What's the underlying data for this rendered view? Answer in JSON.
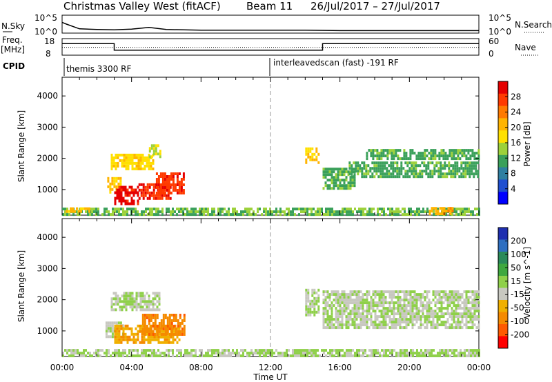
{
  "header": {
    "site": "Christmas Valley West (fitACF)",
    "beam": "Beam 11",
    "date_range": "26/Jul/2017 – 27/Jul/2017"
  },
  "nsky_panel": {
    "label": "N.Sky",
    "left_ticks": [
      "10^5",
      "10^0"
    ],
    "right_ticks": [
      "10^5",
      "10^0"
    ],
    "right_label": "N.Search"
  },
  "freq_panel": {
    "label_line1": "Freq.",
    "label_line2": "[MHz]",
    "left_ticks": [
      "18",
      "8"
    ],
    "right_ticks": [
      "60",
      "0"
    ],
    "right_label": "Nave"
  },
  "cpid": {
    "label": "CPID",
    "modes": [
      {
        "name": "themis 3300 RF",
        "start_hour": 0,
        "end_hour": 12
      },
      {
        "name": "interleavedscan (fast) -191 RF",
        "start_hour": 12,
        "end_hour": 24
      }
    ]
  },
  "time_axis": {
    "label": "Time UT",
    "ticks": [
      "00:00",
      "04:00",
      "08:00",
      "12:00",
      "16:00",
      "20:00",
      "00:00"
    ]
  },
  "colorbars": {
    "power": {
      "label": "Power [dB]",
      "ticks": [
        "28",
        "24",
        "20",
        "16",
        "12",
        "8",
        "4"
      ],
      "colors": [
        "#e50000",
        "#ff3a00",
        "#ff7a00",
        "#ffb400",
        "#ffe000",
        "#9cd13a",
        "#3aa05a",
        "#2f7fa0",
        "#1f4fd0",
        "#0000ff"
      ]
    },
    "velocity": {
      "label": "Velocity [m s^-1]",
      "ticks": [
        "200",
        "100",
        "50",
        "15",
        "-15",
        "-50",
        "-100",
        "-200"
      ],
      "colors": [
        "#1f2fb0",
        "#2f6fc0",
        "#2a8a5a",
        "#3fa83f",
        "#8fd04a",
        "#c8c8c0",
        "#f0b000",
        "#f58a00",
        "#ff5a00",
        "#ff0000"
      ]
    }
  },
  "chart_data": [
    {
      "type": "line",
      "title": "N.Sky / N.Search",
      "x": [
        0,
        0.25,
        1,
        2,
        3,
        4,
        5,
        6,
        8,
        10,
        12,
        14,
        16,
        18,
        20,
        22,
        24
      ],
      "series": [
        {
          "name": "N.Sky",
          "values": [
            3.0,
            2.5,
            1.2,
            1.0,
            0.9,
            1.1,
            1.6,
            1.0,
            0.8,
            0.8,
            0.8,
            0.8,
            0.7,
            0.7,
            0.7,
            0.7,
            0.7
          ]
        }
      ],
      "ylim": [
        0,
        5
      ]
    },
    {
      "type": "line",
      "title": "Freq. / Nave",
      "x": [
        0,
        3,
        3,
        15,
        15,
        24
      ],
      "series": [
        {
          "name": "Freq.",
          "values": [
            15,
            15,
            11,
            11,
            15,
            15
          ]
        },
        {
          "name": "Nave",
          "values": [
            28,
            28,
            28,
            28,
            28,
            28
          ]
        }
      ],
      "ylim": [
        8,
        18
      ]
    },
    {
      "type": "heatmap",
      "title": "Power [dB]",
      "xlabel": "Time UT",
      "ylabel": "Slant Range [km]",
      "xlim": [
        0,
        24
      ],
      "ylim": [
        180,
        4600
      ],
      "yticks": [
        1000,
        2000,
        3000,
        4000
      ],
      "zlim": [
        0,
        30
      ],
      "regions": [
        {
          "t": [
            0.0,
            24.0
          ],
          "r": [
            190,
            420
          ],
          "value": 12
        },
        {
          "t": [
            0.2,
            1.6
          ],
          "r": [
            330,
            430
          ],
          "value": 19
        },
        {
          "t": [
            2.6,
            3.4
          ],
          "r": [
            900,
            1400
          ],
          "value": 18
        },
        {
          "t": [
            3.0,
            4.4
          ],
          "r": [
            560,
            1120
          ],
          "value": 28
        },
        {
          "t": [
            4.4,
            6.2
          ],
          "r": [
            700,
            1200
          ],
          "value": 27
        },
        {
          "t": [
            5.4,
            7.0
          ],
          "r": [
            900,
            1550
          ],
          "value": 26
        },
        {
          "t": [
            2.8,
            5.2
          ],
          "r": [
            1650,
            2150
          ],
          "value": 17
        },
        {
          "t": [
            5.0,
            5.6
          ],
          "r": [
            2050,
            2450
          ],
          "value": 15
        },
        {
          "t": [
            14.0,
            14.8
          ],
          "r": [
            1850,
            2350
          ],
          "value": 18
        },
        {
          "t": [
            15.0,
            16.8
          ],
          "r": [
            1050,
            1700
          ],
          "value": 11
        },
        {
          "t": [
            16.5,
            24.0
          ],
          "r": [
            1400,
            1900
          ],
          "value": 11
        },
        {
          "t": [
            17.5,
            24.0
          ],
          "r": [
            2000,
            2300
          ],
          "value": 11
        },
        {
          "t": [
            21.0,
            22.5
          ],
          "r": [
            250,
            440
          ],
          "value": 20
        }
      ]
    },
    {
      "type": "heatmap",
      "title": "Velocity [m s^-1]",
      "xlabel": "Time UT",
      "ylabel": "Slant Range [km]",
      "xlim": [
        0,
        24
      ],
      "ylim": [
        180,
        4600
      ],
      "yticks": [
        1000,
        2000,
        3000,
        4000
      ],
      "zlim": [
        -250,
        250
      ],
      "regions": [
        {
          "t": [
            0.0,
            24.0
          ],
          "r": [
            190,
            420
          ],
          "value": 8
        },
        {
          "t": [
            2.5,
            3.5
          ],
          "r": [
            850,
            1300
          ],
          "value": -10
        },
        {
          "t": [
            3.0,
            6.8
          ],
          "r": [
            600,
            1200
          ],
          "value": -90
        },
        {
          "t": [
            4.6,
            7.0
          ],
          "r": [
            900,
            1550
          ],
          "value": -130
        },
        {
          "t": [
            2.8,
            5.6
          ],
          "r": [
            1650,
            2250
          ],
          "value": -5
        },
        {
          "t": [
            14.0,
            14.8
          ],
          "r": [
            1500,
            2350
          ],
          "value": -5
        },
        {
          "t": [
            15.0,
            24.0
          ],
          "r": [
            1100,
            2300
          ],
          "value": -5
        }
      ]
    }
  ]
}
